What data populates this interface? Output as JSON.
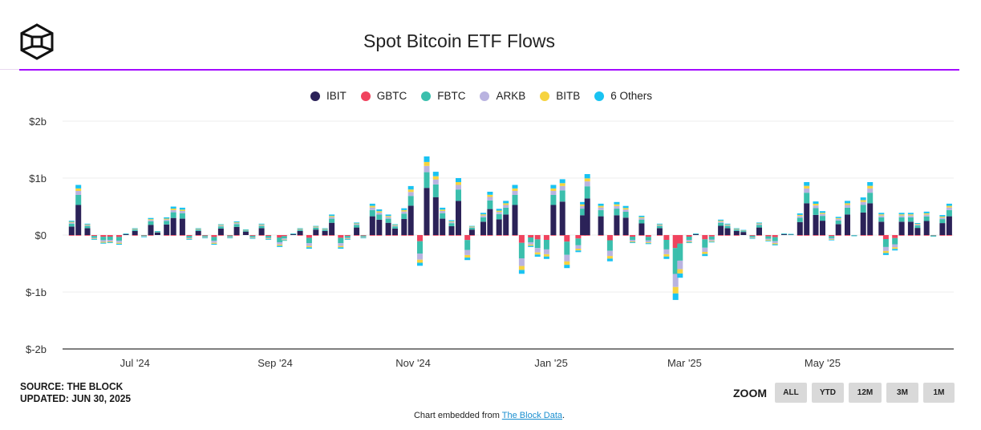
{
  "header": {
    "title": "Spot Bitcoin ETF Flows"
  },
  "footer": {
    "source": "SOURCE: THE BLOCK",
    "updated": "UPDATED: JUN 30, 2025",
    "zoom_label": "ZOOM",
    "zoom_buttons": [
      "ALL",
      "YTD",
      "12M",
      "3M",
      "1M"
    ],
    "embed_prefix": "Chart embedded from ",
    "embed_link": "The Block Data",
    "embed_suffix": "."
  },
  "chart_data": {
    "type": "bar",
    "stacked": true,
    "title": "Spot Bitcoin ETF Flows",
    "unit": "USD millions",
    "ylim": [
      -2000,
      2000
    ],
    "yticks": [
      2000,
      1000,
      0,
      -1000,
      -2000
    ],
    "ytick_labels": [
      "$2b",
      "$1b",
      "$0",
      "$-1b",
      "$-2b"
    ],
    "xlim": [
      "2024-05-30",
      "2025-06-28"
    ],
    "xticks": [
      "2024-07-01",
      "2024-09-01",
      "2024-11-01",
      "2025-01-01",
      "2025-03-01",
      "2025-05-01"
    ],
    "xtick_labels": [
      "Jul '24",
      "Sep '24",
      "Nov '24",
      "Jan '25",
      "Mar '25",
      "May '25"
    ],
    "grid": true,
    "legend_position": "top",
    "x": [
      "2024-06-03",
      "2024-06-06",
      "2024-06-10",
      "2024-06-13",
      "2024-06-17",
      "2024-06-20",
      "2024-06-24",
      "2024-06-27",
      "2024-07-01",
      "2024-07-05",
      "2024-07-08",
      "2024-07-11",
      "2024-07-15",
      "2024-07-18",
      "2024-07-22",
      "2024-07-25",
      "2024-07-29",
      "2024-08-01",
      "2024-08-05",
      "2024-08-08",
      "2024-08-12",
      "2024-08-15",
      "2024-08-19",
      "2024-08-22",
      "2024-08-26",
      "2024-08-29",
      "2024-09-03",
      "2024-09-05",
      "2024-09-09",
      "2024-09-12",
      "2024-09-16",
      "2024-09-19",
      "2024-09-23",
      "2024-09-26",
      "2024-09-30",
      "2024-10-03",
      "2024-10-07",
      "2024-10-10",
      "2024-10-14",
      "2024-10-17",
      "2024-10-21",
      "2024-10-24",
      "2024-10-28",
      "2024-10-31",
      "2024-11-04",
      "2024-11-07",
      "2024-11-11",
      "2024-11-14",
      "2024-11-18",
      "2024-11-21",
      "2024-11-25",
      "2024-11-27",
      "2024-12-02",
      "2024-12-05",
      "2024-12-09",
      "2024-12-12",
      "2024-12-16",
      "2024-12-19",
      "2024-12-23",
      "2024-12-26",
      "2024-12-30",
      "2025-01-02",
      "2025-01-06",
      "2025-01-08",
      "2025-01-13",
      "2025-01-15",
      "2025-01-17",
      "2025-01-23",
      "2025-01-27",
      "2025-01-30",
      "2025-02-03",
      "2025-02-06",
      "2025-02-10",
      "2025-02-13",
      "2025-02-18",
      "2025-02-21",
      "2025-02-25",
      "2025-02-27",
      "2025-03-03",
      "2025-03-06",
      "2025-03-10",
      "2025-03-13",
      "2025-03-17",
      "2025-03-20",
      "2025-03-24",
      "2025-03-27",
      "2025-03-31",
      "2025-04-03",
      "2025-04-07",
      "2025-04-10",
      "2025-04-14",
      "2025-04-17",
      "2025-04-21",
      "2025-04-24",
      "2025-04-28",
      "2025-05-01",
      "2025-05-05",
      "2025-05-08",
      "2025-05-12",
      "2025-05-15",
      "2025-05-19",
      "2025-05-22",
      "2025-05-27",
      "2025-05-29",
      "2025-06-02",
      "2025-06-05",
      "2025-06-09",
      "2025-06-12",
      "2025-06-16",
      "2025-06-19",
      "2025-06-23",
      "2025-06-26"
    ],
    "series": [
      {
        "name": "IBIT",
        "color": "#2b2258",
        "values": [
          150,
          528,
          120,
          0,
          0,
          0,
          0,
          18,
          72,
          0,
          180,
          42,
          186,
          300,
          288,
          0,
          72,
          0,
          0,
          114,
          0,
          144,
          60,
          0,
          120,
          0,
          0,
          0,
          18,
          72,
          0,
          96,
          72,
          216,
          0,
          0,
          132,
          0,
          330,
          270,
          216,
          114,
          282,
          516,
          0,
          828,
          666,
          288,
          156,
          600,
          0,
          96,
          234,
          456,
          276,
          360,
          528,
          0,
          0,
          0,
          0,
          528,
          588,
          0,
          0,
          348,
          642,
          330,
          0,
          348,
          306,
          0,
          204,
          0,
          120,
          0,
          0,
          0,
          0,
          18,
          0,
          0,
          162,
          120,
          72,
          54,
          0,
          132,
          0,
          0,
          18,
          12,
          228,
          558,
          354,
          252,
          0,
          192,
          360,
          0,
          396,
          558,
          234,
          0,
          0,
          234,
          234,
          126,
          246,
          0,
          210,
          330
        ]
      },
      {
        "name": "GBTC",
        "color": "#f0435e",
        "values": [
          -10,
          -10,
          -10,
          -16,
          -30,
          -28,
          -34,
          0,
          -10,
          -6,
          -10,
          0,
          -10,
          -10,
          -10,
          -16,
          -10,
          -10,
          -34,
          -10,
          -10,
          -10,
          0,
          -12,
          -10,
          -16,
          -42,
          -20,
          0,
          -10,
          -48,
          -10,
          -10,
          -10,
          -48,
          -16,
          -10,
          -10,
          -10,
          -10,
          -10,
          -10,
          -10,
          -10,
          -108,
          -10,
          -10,
          -10,
          -10,
          -10,
          -88,
          -10,
          -10,
          -10,
          -10,
          -10,
          -10,
          -136,
          -42,
          -76,
          -84,
          -10,
          -10,
          -116,
          -60,
          -10,
          -10,
          -10,
          -92,
          -10,
          -10,
          -28,
          -10,
          -32,
          -10,
          -84,
          -228,
          -150,
          -28,
          0,
          -74,
          -26,
          -10,
          -10,
          -10,
          0,
          -12,
          -10,
          -22,
          -36,
          0,
          0,
          -10,
          -10,
          -10,
          -10,
          -18,
          -10,
          -10,
          -2,
          -10,
          -10,
          -10,
          -70,
          -54,
          -10,
          -10,
          -10,
          -10,
          -4,
          -10,
          -10
        ]
      },
      {
        "name": "FBTC",
        "color": "#3bbfad",
        "values": [
          50,
          176,
          40,
          -32,
          -60,
          -56,
          -68,
          6,
          24,
          -12,
          60,
          14,
          62,
          100,
          96,
          -32,
          24,
          -20,
          -68,
          38,
          -20,
          48,
          20,
          -24,
          40,
          -32,
          -84,
          -40,
          6,
          24,
          -96,
          32,
          24,
          72,
          -96,
          -32,
          44,
          -20,
          110,
          90,
          72,
          38,
          94,
          172,
          -216,
          276,
          222,
          96,
          52,
          200,
          -176,
          32,
          78,
          152,
          92,
          120,
          176,
          -272,
          -84,
          -152,
          -168,
          176,
          196,
          -232,
          -120,
          116,
          214,
          110,
          -184,
          116,
          102,
          -56,
          68,
          -64,
          40,
          -168,
          -456,
          -300,
          -56,
          6,
          -148,
          -52,
          54,
          40,
          24,
          18,
          -24,
          44,
          -44,
          -72,
          6,
          4,
          76,
          186,
          118,
          84,
          -36,
          64,
          120,
          -4,
          132,
          186,
          78,
          -140,
          -108,
          78,
          78,
          42,
          82,
          -8,
          70,
          110
        ]
      },
      {
        "name": "ARKB",
        "color": "#b9b3e0",
        "values": [
          20,
          70,
          16,
          -16,
          -30,
          -28,
          -34,
          2,
          10,
          -6,
          24,
          6,
          25,
          40,
          38,
          -16,
          10,
          -10,
          -34,
          15,
          -10,
          19,
          8,
          -12,
          16,
          -16,
          -42,
          -20,
          2,
          10,
          -48,
          13,
          10,
          29,
          -48,
          -16,
          18,
          -10,
          44,
          36,
          29,
          15,
          38,
          69,
          -108,
          110,
          89,
          38,
          21,
          80,
          -88,
          13,
          31,
          61,
          37,
          48,
          70,
          -136,
          -42,
          -76,
          -84,
          70,
          78,
          -116,
          -60,
          46,
          86,
          44,
          -92,
          46,
          41,
          -28,
          27,
          -32,
          16,
          -84,
          -228,
          -150,
          -28,
          2,
          -74,
          -26,
          22,
          16,
          10,
          7,
          -12,
          18,
          -22,
          -36,
          2,
          2,
          30,
          74,
          47,
          34,
          -18,
          26,
          48,
          -2,
          53,
          74,
          31,
          -70,
          -54,
          31,
          31,
          17,
          33,
          -4,
          28,
          44
        ]
      },
      {
        "name": "BITB",
        "color": "#f6d33f",
        "values": [
          13,
          44,
          10,
          -8,
          -15,
          -14,
          -17,
          2,
          6,
          -3,
          15,
          4,
          16,
          25,
          24,
          -8,
          6,
          -5,
          -17,
          10,
          -5,
          12,
          5,
          -6,
          10,
          -8,
          -21,
          -10,
          2,
          6,
          -24,
          8,
          6,
          18,
          -24,
          -8,
          11,
          -5,
          28,
          23,
          18,
          10,
          24,
          43,
          -54,
          69,
          56,
          24,
          13,
          50,
          -44,
          8,
          20,
          38,
          23,
          30,
          44,
          -68,
          -21,
          -38,
          -42,
          44,
          49,
          -58,
          -30,
          29,
          54,
          28,
          -46,
          29,
          26,
          -14,
          17,
          -16,
          10,
          -42,
          -114,
          -75,
          -14,
          2,
          -37,
          -13,
          14,
          10,
          6,
          5,
          -6,
          11,
          -11,
          -18,
          2,
          1,
          19,
          47,
          30,
          21,
          -9,
          16,
          30,
          -1,
          33,
          47,
          20,
          -35,
          -27,
          20,
          20,
          11,
          21,
          -2,
          18,
          28
        ]
      },
      {
        "name": "6 Others",
        "color": "#19c3f2",
        "values": [
          18,
          62,
          14,
          -8,
          -15,
          -14,
          -17,
          2,
          8,
          -3,
          21,
          5,
          22,
          35,
          34,
          -8,
          8,
          -5,
          -17,
          13,
          -5,
          17,
          7,
          -6,
          14,
          -8,
          -21,
          -10,
          2,
          8,
          -24,
          11,
          8,
          25,
          -24,
          -8,
          15,
          -5,
          38,
          32,
          25,
          13,
          33,
          60,
          -54,
          97,
          78,
          34,
          18,
          70,
          -44,
          11,
          27,
          53,
          32,
          42,
          62,
          -68,
          -21,
          -38,
          -42,
          62,
          69,
          -58,
          -30,
          41,
          75,
          38,
          -46,
          41,
          36,
          -14,
          24,
          -16,
          14,
          -42,
          -114,
          -75,
          -14,
          2,
          -37,
          -13,
          19,
          14,
          8,
          6,
          -6,
          15,
          -11,
          -18,
          2,
          1,
          27,
          65,
          41,
          29,
          -9,
          22,
          42,
          -1,
          46,
          65,
          27,
          -35,
          -27,
          27,
          27,
          15,
          29,
          -2,
          25,
          38
        ]
      }
    ]
  }
}
